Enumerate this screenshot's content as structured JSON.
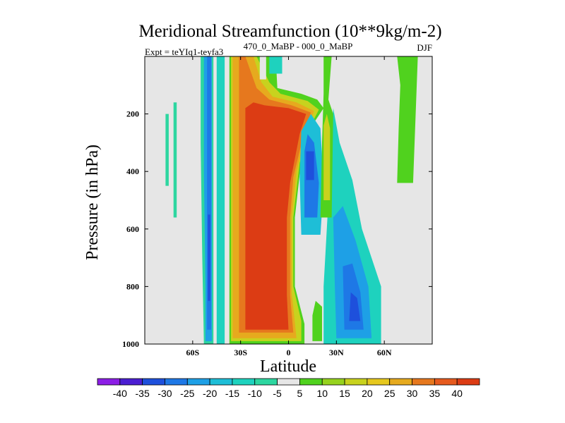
{
  "chart_data": {
    "type": "heatmap",
    "title": "Meridional Streamfunction (10**9kg/m-2)",
    "subtitle_left": "Expt = teYIq1-teyfa3",
    "subtitle_center": "470_0_MaBP - 000_0_MaBP",
    "subtitle_right": "DJF",
    "xlabel": "Latitude",
    "ylabel": "Pressure (in hPa)",
    "xlim": [
      -90,
      90
    ],
    "ylim": [
      1000,
      0
    ],
    "x_ticks": [
      {
        "value": -60,
        "label": "60S"
      },
      {
        "value": -30,
        "label": "30S"
      },
      {
        "value": 0,
        "label": "0"
      },
      {
        "value": 30,
        "label": "30N"
      },
      {
        "value": 60,
        "label": "60N"
      }
    ],
    "y_ticks": [
      {
        "value": 200,
        "label": "200"
      },
      {
        "value": 400,
        "label": "400"
      },
      {
        "value": 600,
        "label": "600"
      },
      {
        "value": 800,
        "label": "800"
      },
      {
        "value": 1000,
        "label": "1000"
      }
    ],
    "background_color": "#e6e6e6",
    "levels": [
      {
        "label": "-40",
        "color": "#8c1ee6"
      },
      {
        "label": "-35",
        "color": "#4b1ed2"
      },
      {
        "label": "-30",
        "color": "#1e50dc"
      },
      {
        "label": "-25",
        "color": "#1e78e6"
      },
      {
        "label": "-20",
        "color": "#1ea0e6"
      },
      {
        "label": "-15",
        "color": "#1ebed7"
      },
      {
        "label": "-10",
        "color": "#1ed2be"
      },
      {
        "label": "-5",
        "color": "#2dd6a0"
      },
      {
        "label": "5",
        "color": "#e6e6e6"
      },
      {
        "label": "10",
        "color": "#50d21e"
      },
      {
        "label": "15",
        "color": "#96d21e"
      },
      {
        "label": "20",
        "color": "#c8d21e"
      },
      {
        "label": "25",
        "color": "#e6c81e"
      },
      {
        "label": "30",
        "color": "#e6aa1e"
      },
      {
        "label": "35",
        "color": "#e6781e"
      },
      {
        "label": "40",
        "color": "#e65a1e"
      },
      {
        "label": "",
        "color": "#dc3c14"
      }
    ],
    "regions": [
      {
        "name": "sh-midlat-cell-outer",
        "color": "#2dd6a0",
        "points": [
          [
            -53,
            1000
          ],
          [
            -47,
            1000
          ],
          [
            -47,
            0
          ],
          [
            -55,
            0
          ],
          [
            -55,
            300
          ],
          [
            -54,
            700
          ]
        ]
      },
      {
        "name": "sh-midlat-cell",
        "color": "#1ea0e6",
        "points": [
          [
            -52,
            990
          ],
          [
            -48,
            990
          ],
          [
            -48,
            0
          ],
          [
            -53,
            0
          ],
          [
            -53,
            400
          ],
          [
            -52,
            800
          ]
        ]
      },
      {
        "name": "sh-midlat-cell-core",
        "color": "#1e78e6",
        "points": [
          [
            -51,
            950
          ],
          [
            -48.5,
            950
          ],
          [
            -48.5,
            0
          ],
          [
            -51,
            0
          ],
          [
            -51,
            500
          ]
        ]
      },
      {
        "name": "sh-midlat-cell-max",
        "color": "#1e50dc",
        "points": [
          [
            -50.5,
            850
          ],
          [
            -49,
            850
          ],
          [
            -49,
            550
          ],
          [
            -50.5,
            550
          ]
        ]
      },
      {
        "name": "sh-highlat-patch",
        "color": "#2dd6a0",
        "points": [
          [
            -77,
            450
          ],
          [
            -75,
            450
          ],
          [
            -75,
            200
          ],
          [
            -77,
            200
          ]
        ]
      },
      {
        "name": "sh-highlat-patch-2",
        "color": "#2dd6a0",
        "points": [
          [
            -72,
            560
          ],
          [
            -70,
            560
          ],
          [
            -70,
            160
          ],
          [
            -72,
            160
          ]
        ]
      },
      {
        "name": "sh-polar-strip",
        "color": "#1ed2be",
        "points": [
          [
            -45,
            1000
          ],
          [
            -40,
            1000
          ],
          [
            -40,
            0
          ],
          [
            -45,
            0
          ]
        ]
      },
      {
        "name": "hadley-cell-outer",
        "color": "#50d21e",
        "points": [
          [
            -37,
            1000
          ],
          [
            10,
            1000
          ],
          [
            10,
            930
          ],
          [
            4,
            800
          ],
          [
            4,
            560
          ],
          [
            8,
            360
          ],
          [
            16,
            230
          ],
          [
            22,
            180
          ],
          [
            18,
            150
          ],
          [
            8,
            130
          ],
          [
            -7,
            110
          ],
          [
            -8,
            0
          ],
          [
            -37,
            0
          ]
        ]
      },
      {
        "name": "hadley-cell-15",
        "color": "#c8d21e",
        "points": [
          [
            -36,
            990
          ],
          [
            8,
            990
          ],
          [
            8,
            920
          ],
          [
            3,
            800
          ],
          [
            3,
            560
          ],
          [
            7,
            370
          ],
          [
            14,
            240
          ],
          [
            19,
            185
          ],
          [
            12,
            155
          ],
          [
            -5,
            130
          ],
          [
            -12,
            90
          ],
          [
            -20,
            0
          ],
          [
            -36,
            0
          ]
        ]
      },
      {
        "name": "hadley-cell-25",
        "color": "#e6aa1e",
        "points": [
          [
            -35,
            980
          ],
          [
            5,
            980
          ],
          [
            2,
            820
          ],
          [
            2,
            560
          ],
          [
            5,
            400
          ],
          [
            12,
            250
          ],
          [
            16,
            190
          ],
          [
            5,
            160
          ],
          [
            -10,
            140
          ],
          [
            -17,
            90
          ],
          [
            -22,
            0
          ],
          [
            -35,
            0
          ]
        ]
      },
      {
        "name": "hadley-cell-35",
        "color": "#e6781e",
        "points": [
          [
            -31,
            960
          ],
          [
            3,
            960
          ],
          [
            1,
            830
          ],
          [
            1,
            560
          ],
          [
            3,
            420
          ],
          [
            10,
            260
          ],
          [
            14,
            195
          ],
          [
            2,
            170
          ],
          [
            -12,
            150
          ],
          [
            -20,
            110
          ],
          [
            -27,
            0
          ],
          [
            -31,
            0
          ]
        ]
      },
      {
        "name": "hadley-cell-core",
        "color": "#dc3c14",
        "points": [
          [
            -27,
            950
          ],
          [
            0,
            950
          ],
          [
            -1,
            830
          ],
          [
            -1,
            560
          ],
          [
            1,
            440
          ],
          [
            7,
            270
          ],
          [
            11,
            200
          ],
          [
            0,
            180
          ],
          [
            -15,
            170
          ],
          [
            -22,
            160
          ],
          [
            -27,
            180
          ]
        ]
      },
      {
        "name": "nh-cell-upper",
        "color": "#1ebed7",
        "points": [
          [
            8,
            620
          ],
          [
            20,
            620
          ],
          [
            22,
            450
          ],
          [
            20,
            250
          ],
          [
            14,
            200
          ],
          [
            8,
            260
          ],
          [
            7,
            420
          ]
        ]
      },
      {
        "name": "nh-cell-upper-core",
        "color": "#1e78e6",
        "points": [
          [
            10,
            560
          ],
          [
            18,
            560
          ],
          [
            19,
            440
          ],
          [
            16,
            300
          ],
          [
            12,
            270
          ],
          [
            10,
            330
          ]
        ]
      },
      {
        "name": "nh-cell-upper-max",
        "color": "#1e50dc",
        "points": [
          [
            11,
            430
          ],
          [
            16,
            430
          ],
          [
            16,
            330
          ],
          [
            11,
            330
          ]
        ]
      },
      {
        "name": "nh-cell-lower",
        "color": "#1ed2be",
        "points": [
          [
            22,
            1000
          ],
          [
            58,
            1000
          ],
          [
            58,
            800
          ],
          [
            46,
            600
          ],
          [
            40,
            430
          ],
          [
            32,
            300
          ],
          [
            28,
            180
          ],
          [
            25,
            500
          ],
          [
            22,
            800
          ]
        ]
      },
      {
        "name": "nh-cell-lower-mid",
        "color": "#1ea0e6",
        "points": [
          [
            30,
            980
          ],
          [
            52,
            980
          ],
          [
            50,
            800
          ],
          [
            42,
            640
          ],
          [
            34,
            520
          ],
          [
            28,
            560
          ],
          [
            29,
            800
          ]
        ]
      },
      {
        "name": "nh-cell-lower-core",
        "color": "#1e78e6",
        "points": [
          [
            35,
            950
          ],
          [
            47,
            950
          ],
          [
            45,
            820
          ],
          [
            40,
            720
          ],
          [
            34,
            730
          ]
        ]
      },
      {
        "name": "nh-cell-lower-max",
        "color": "#1e50dc",
        "points": [
          [
            38,
            920
          ],
          [
            45,
            920
          ],
          [
            43,
            840
          ],
          [
            39,
            820
          ]
        ]
      },
      {
        "name": "nh-subtropic-band",
        "color": "#50d21e",
        "points": [
          [
            20,
            560
          ],
          [
            27,
            560
          ],
          [
            28,
            200
          ],
          [
            25,
            150
          ],
          [
            27,
            0
          ],
          [
            22,
            0
          ],
          [
            22,
            130
          ],
          [
            21,
            300
          ]
        ]
      },
      {
        "name": "nh-subtropic-core",
        "color": "#c8d21e",
        "points": [
          [
            22,
            500
          ],
          [
            26,
            500
          ],
          [
            26,
            250
          ],
          [
            24,
            200
          ],
          [
            22,
            240
          ]
        ]
      },
      {
        "name": "nh-surface-patch",
        "color": "#50d21e",
        "points": [
          [
            15,
            990
          ],
          [
            21,
            990
          ],
          [
            21,
            870
          ],
          [
            17,
            850
          ],
          [
            15,
            900
          ]
        ]
      },
      {
        "name": "nh-highlat-cell",
        "color": "#50d21e",
        "points": [
          [
            68,
            440
          ],
          [
            78,
            440
          ],
          [
            81,
            0
          ],
          [
            68,
            0
          ],
          [
            70,
            100
          ],
          [
            69,
            250
          ]
        ]
      },
      {
        "name": "tropical-top-patch",
        "color": "#1ed2be",
        "points": [
          [
            -12,
            0
          ],
          [
            -4,
            0
          ],
          [
            -4,
            60
          ],
          [
            -12,
            60
          ]
        ]
      },
      {
        "name": "equator-top-patch",
        "color": "#e6e6e6",
        "points": [
          [
            -18,
            0
          ],
          [
            -14,
            0
          ],
          [
            -14,
            80
          ],
          [
            -18,
            80
          ]
        ]
      }
    ]
  }
}
